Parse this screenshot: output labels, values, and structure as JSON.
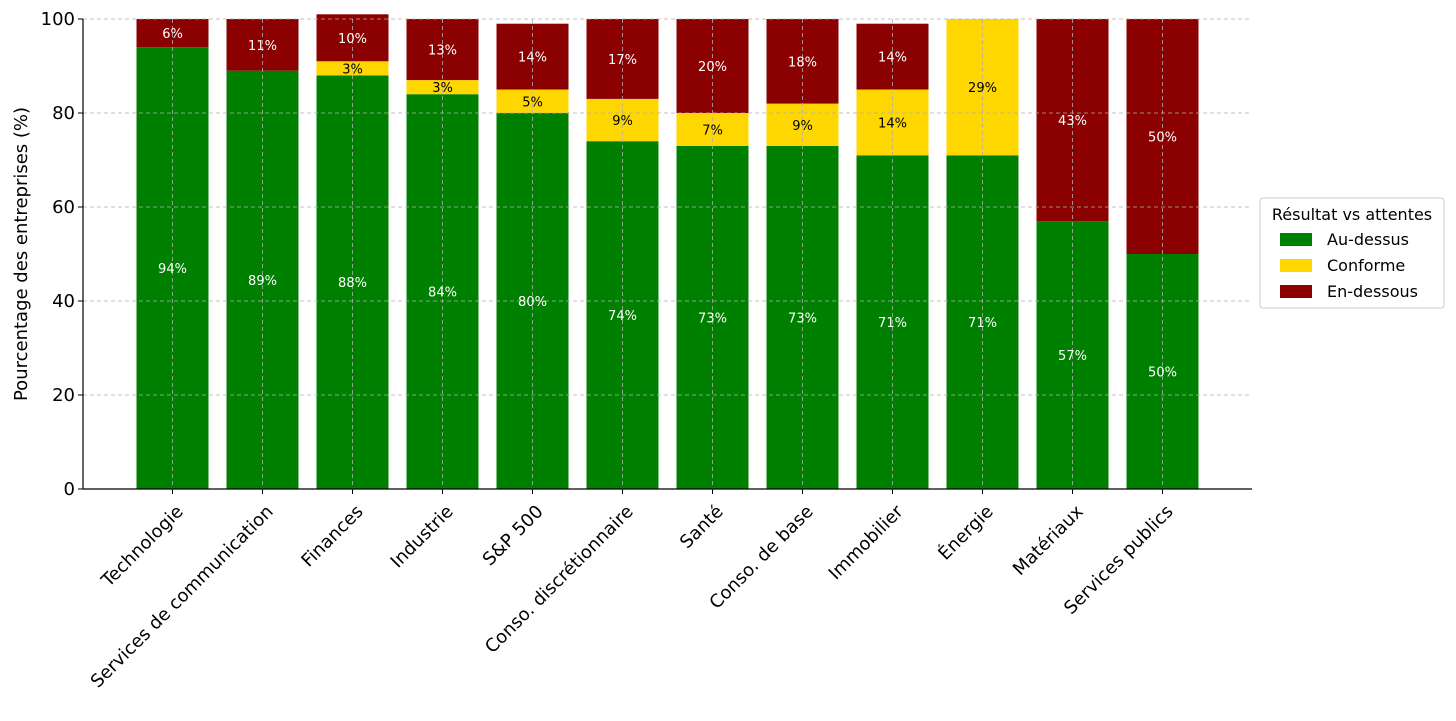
{
  "chart_data": {
    "type": "bar",
    "stacked": true,
    "title": "",
    "xlabel": "",
    "ylabel": "Pourcentage des entreprises (%)",
    "ylim": [
      0,
      100
    ],
    "yticks": [
      0,
      20,
      40,
      60,
      80,
      100
    ],
    "grid": true,
    "legend_title": "Résultat vs attentes",
    "legend_position": "right",
    "categories": [
      "Technologie",
      "Services de communication",
      "Finances",
      "Industrie",
      "S&P 500",
      "Conso. discrétionnaire",
      "Santé",
      "Conso. de base",
      "Immobilier",
      "Énergie",
      "Matériaux",
      "Services publics"
    ],
    "series": [
      {
        "name": "Au-dessus",
        "color": "#008000",
        "label_color": "#ffffff",
        "values": [
          94,
          89,
          88,
          84,
          80,
          74,
          73,
          73,
          71,
          71,
          57,
          50
        ],
        "labels": [
          "94%",
          "89%",
          "88%",
          "84%",
          "80%",
          "74%",
          "73%",
          "73%",
          "71%",
          "71%",
          "57%",
          "50%"
        ]
      },
      {
        "name": "Conforme",
        "color": "#FFD700",
        "label_color": "#000000",
        "values": [
          0,
          0,
          3,
          3,
          5,
          9,
          7,
          9,
          14,
          29,
          0,
          0
        ],
        "labels": [
          "",
          "",
          "3%",
          "3%",
          "5%",
          "9%",
          "7%",
          "9%",
          "14%",
          "29%",
          "",
          ""
        ]
      },
      {
        "name": "En-dessous",
        "color": "#8B0000",
        "label_color": "#ffffff",
        "values": [
          6,
          11,
          10,
          13,
          14,
          17,
          20,
          18,
          14,
          0,
          43,
          50
        ],
        "labels": [
          "6%",
          "11%",
          "10%",
          "13%",
          "14%",
          "17%",
          "20%",
          "18%",
          "14%",
          "",
          "43%",
          "50%"
        ]
      }
    ]
  }
}
